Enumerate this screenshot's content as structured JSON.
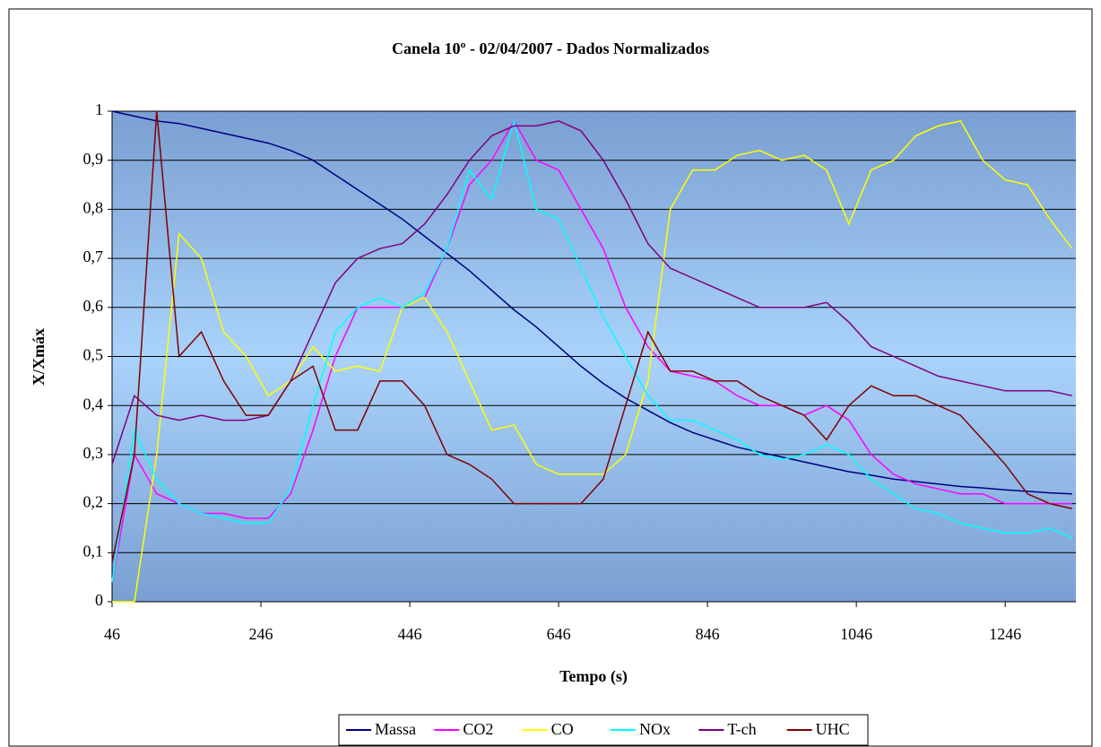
{
  "chart_data": {
    "type": "line",
    "title": "Canela 10º  - 02/04/2007 - Dados Normalizados",
    "xlabel": "Tempo (s)",
    "ylabel": "X/Xmáx",
    "x": [
      46,
      76,
      106,
      136,
      166,
      196,
      226,
      256,
      286,
      316,
      346,
      376,
      406,
      436,
      466,
      496,
      526,
      556,
      586,
      616,
      646,
      676,
      706,
      736,
      766,
      796,
      826,
      856,
      886,
      916,
      946,
      976,
      1006,
      1036,
      1066,
      1096,
      1126,
      1156,
      1186,
      1216,
      1246,
      1276,
      1306,
      1336
    ],
    "xlim": [
      46,
      1341
    ],
    "xticks": [
      46,
      246,
      446,
      646,
      846,
      1046,
      1246
    ],
    "ylim": [
      0,
      1
    ],
    "yticks": [
      0,
      {
        "value": 0.1,
        "label": "0,1"
      },
      {
        "value": 0.2,
        "label": "0,2"
      },
      {
        "value": 0.3,
        "label": "0,3"
      },
      {
        "value": 0.4,
        "label": "0,4"
      },
      {
        "value": 0.5,
        "label": "0,5"
      },
      {
        "value": 0.6,
        "label": "0,6"
      },
      {
        "value": 0.7,
        "label": "0,7"
      },
      {
        "value": 0.8,
        "label": "0,8"
      },
      {
        "value": 0.9,
        "label": "0,9"
      },
      1
    ],
    "grid": true,
    "legend": "bottom",
    "series": [
      {
        "name": "Massa",
        "color": "#000080",
        "values": [
          1,
          0.99,
          0.98,
          0.975,
          0.965,
          0.955,
          0.945,
          0.935,
          0.92,
          0.9,
          0.87,
          0.84,
          0.81,
          0.78,
          0.745,
          0.71,
          0.675,
          0.635,
          0.595,
          0.56,
          0.52,
          0.48,
          0.445,
          0.415,
          0.39,
          0.365,
          0.345,
          0.33,
          0.315,
          0.305,
          0.295,
          0.285,
          0.275,
          0.265,
          0.258,
          0.25,
          0.245,
          0.24,
          0.235,
          0.232,
          0.228,
          0.225,
          0.222,
          0.22
        ]
      },
      {
        "name": "CO2",
        "color": "#ff00ff",
        "values": [
          0.04,
          0.3,
          0.22,
          0.2,
          0.18,
          0.18,
          0.17,
          0.17,
          0.22,
          0.35,
          0.5,
          0.6,
          0.6,
          0.6,
          0.62,
          0.72,
          0.85,
          0.9,
          0.98,
          0.9,
          0.88,
          0.8,
          0.72,
          0.6,
          0.52,
          0.47,
          0.46,
          0.45,
          0.42,
          0.4,
          0.4,
          0.38,
          0.4,
          0.37,
          0.3,
          0.26,
          0.24,
          0.23,
          0.22,
          0.22,
          0.2,
          0.2,
          0.2,
          0.2
        ]
      },
      {
        "name": "CO",
        "color": "#ffff00",
        "values": [
          0,
          0,
          0.3,
          0.75,
          0.7,
          0.55,
          0.5,
          0.42,
          0.45,
          0.52,
          0.47,
          0.48,
          0.47,
          0.6,
          0.62,
          0.55,
          0.45,
          0.35,
          0.36,
          0.28,
          0.26,
          0.26,
          0.26,
          0.3,
          0.45,
          0.8,
          0.88,
          0.88,
          0.91,
          0.92,
          0.9,
          0.91,
          0.88,
          0.77,
          0.88,
          0.9,
          0.95,
          0.97,
          0.98,
          0.9,
          0.86,
          0.85,
          0.78,
          0.72
        ]
      },
      {
        "name": "NOx",
        "color": "#00ffff",
        "values": [
          0.04,
          0.35,
          0.25,
          0.2,
          0.18,
          0.17,
          0.16,
          0.16,
          0.23,
          0.4,
          0.55,
          0.6,
          0.62,
          0.6,
          0.63,
          0.72,
          0.88,
          0.82,
          0.98,
          0.8,
          0.78,
          0.68,
          0.58,
          0.5,
          0.42,
          0.37,
          0.37,
          0.35,
          0.33,
          0.3,
          0.29,
          0.3,
          0.32,
          0.3,
          0.25,
          0.22,
          0.19,
          0.18,
          0.16,
          0.15,
          0.14,
          0.14,
          0.15,
          0.13
        ]
      },
      {
        "name": "T-ch",
        "color": "#800080",
        "values": [
          0.28,
          0.42,
          0.38,
          0.37,
          0.38,
          0.37,
          0.37,
          0.38,
          0.45,
          0.55,
          0.65,
          0.7,
          0.72,
          0.73,
          0.77,
          0.83,
          0.9,
          0.95,
          0.97,
          0.97,
          0.98,
          0.96,
          0.9,
          0.82,
          0.73,
          0.68,
          0.66,
          0.64,
          0.62,
          0.6,
          0.6,
          0.6,
          0.61,
          0.57,
          0.52,
          0.5,
          0.48,
          0.46,
          0.45,
          0.44,
          0.43,
          0.43,
          0.43,
          0.42
        ]
      },
      {
        "name": "UHC",
        "color": "#800000",
        "values": [
          0.08,
          0.3,
          1.0,
          0.5,
          0.55,
          0.45,
          0.38,
          0.38,
          0.45,
          0.48,
          0.35,
          0.35,
          0.45,
          0.45,
          0.4,
          0.3,
          0.28,
          0.25,
          0.2,
          0.2,
          0.2,
          0.2,
          0.25,
          0.4,
          0.55,
          0.47,
          0.47,
          0.45,
          0.45,
          0.42,
          0.4,
          0.38,
          0.33,
          0.4,
          0.44,
          0.42,
          0.42,
          0.4,
          0.38,
          0.33,
          0.28,
          0.22,
          0.2,
          0.19
        ]
      }
    ]
  }
}
